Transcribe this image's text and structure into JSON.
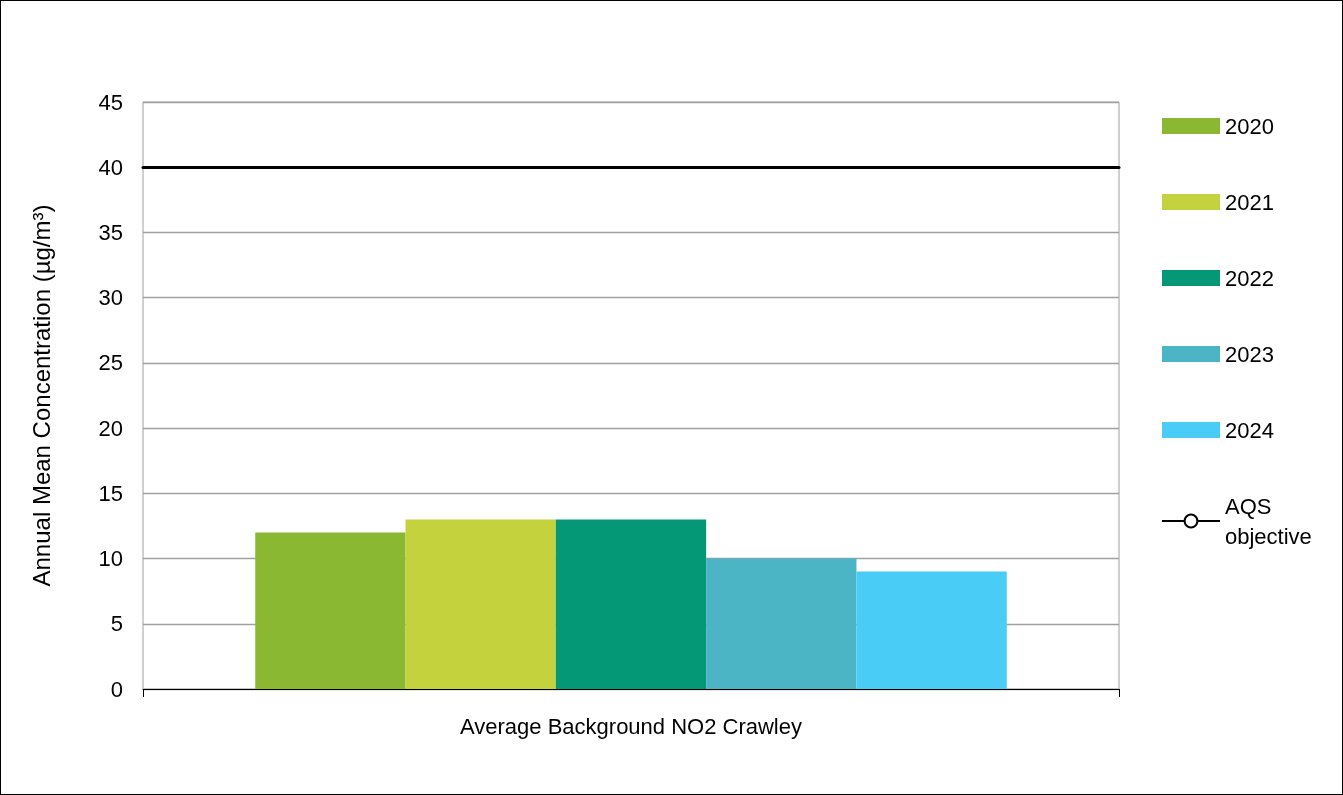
{
  "chart_data": {
    "type": "bar",
    "ylabel": "Annual Mean Concentration (µg/m³)",
    "categories": [
      "Average Background NO2 Crawley"
    ],
    "series": [
      {
        "name": "2020",
        "color": "#8ab833",
        "values": [
          12
        ]
      },
      {
        "name": "2021",
        "color": "#c4d23d",
        "values": [
          13
        ]
      },
      {
        "name": "2022",
        "color": "#049877",
        "values": [
          13
        ]
      },
      {
        "name": "2023",
        "color": "#4bb4c5",
        "values": [
          10
        ]
      },
      {
        "name": "2024",
        "color": "#49ccf5",
        "values": [
          9
        ]
      }
    ],
    "ref_lines": [
      {
        "axis": "y",
        "value": 40,
        "label": "AQS objective",
        "color": "#000000",
        "line_style": "solid"
      }
    ],
    "ylim": [
      0,
      45
    ],
    "yticks": [
      0,
      5,
      10,
      15,
      20,
      25,
      30,
      35,
      40,
      45
    ],
    "grid": "y",
    "legend": "right"
  }
}
